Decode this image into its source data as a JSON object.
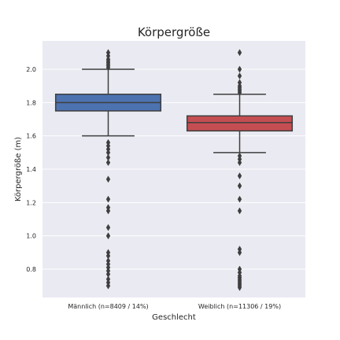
{
  "chart_data": {
    "type": "box",
    "title": "Körpergröße",
    "xlabel": "Geschlecht",
    "ylabel": "Körpergröße (m)",
    "ylim": [
      0.63,
      2.17
    ],
    "yticks": [
      0.8,
      1.0,
      1.2,
      1.4,
      1.6,
      1.8,
      2.0
    ],
    "ytick_labels": [
      "0.8",
      "1.0",
      "1.2",
      "1.4",
      "1.6",
      "1.8",
      "2.0"
    ],
    "grid": true,
    "categories": [
      "Männlich (n=8409 /  14%)",
      "Weiblich (n=11306 /  19%)"
    ],
    "boxes": [
      {
        "category": "Männlich (n=8409 /  14%)",
        "color": "#4c72b0",
        "whisker_low": 1.6,
        "q1": 1.75,
        "median": 1.8,
        "q3": 1.85,
        "whisker_high": 2.0,
        "outliers": [
          0.7,
          0.72,
          0.74,
          0.77,
          0.79,
          0.81,
          0.83,
          0.85,
          0.88,
          0.9,
          1.0,
          1.05,
          1.15,
          1.17,
          1.22,
          1.34,
          1.44,
          1.47,
          1.5,
          1.52,
          1.54,
          1.56,
          2.01,
          2.02,
          2.03,
          2.04,
          2.05,
          2.06,
          2.08,
          2.1
        ]
      },
      {
        "category": "Weiblich (n=11306 /  19%)",
        "color": "#c44e52",
        "whisker_low": 1.5,
        "q1": 1.63,
        "median": 1.68,
        "q3": 1.72,
        "whisker_high": 1.85,
        "outliers": [
          0.69,
          0.7,
          0.71,
          0.72,
          0.73,
          0.74,
          0.75,
          0.76,
          0.78,
          0.8,
          0.9,
          0.92,
          1.15,
          1.22,
          1.3,
          1.36,
          1.44,
          1.46,
          1.48,
          1.86,
          1.87,
          1.88,
          1.89,
          1.9,
          1.92,
          1.96,
          2.0,
          2.1
        ]
      }
    ],
    "colors": {
      "background": "#eaeaf2",
      "grid": "#ffffff",
      "lines": "#3f3f3f"
    }
  }
}
